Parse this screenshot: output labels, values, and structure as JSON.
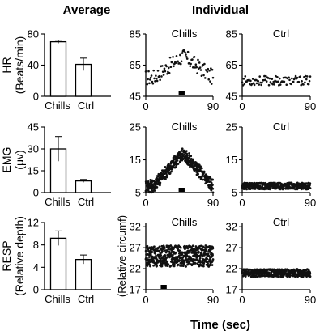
{
  "headers": {
    "average": "Average",
    "individual": "Individual",
    "time": "Time (sec)"
  },
  "chart_data": [
    {
      "id": "hr_avg",
      "type": "bar",
      "ylabel_lines": [
        "HR",
        "(Beats/min)"
      ],
      "categories": [
        "Chills",
        "Ctrl"
      ],
      "values": [
        70,
        41
      ],
      "errors": [
        2,
        8
      ],
      "ylim": [
        0,
        80
      ],
      "yticks": [
        0,
        40,
        80
      ]
    },
    {
      "id": "emg_avg",
      "type": "bar",
      "ylabel_lines": [
        "EMG",
        "(μv)"
      ],
      "categories": [
        "Chills",
        "Ctrl"
      ],
      "values": [
        30,
        8
      ],
      "errors": [
        8.5,
        1
      ],
      "ylim": [
        0,
        45
      ],
      "yticks": [
        0,
        15,
        30,
        45
      ]
    },
    {
      "id": "resp_avg",
      "type": "bar",
      "ylabel_lines": [
        "RESP",
        "(Relative depth)"
      ],
      "categories": [
        "Chills",
        "Ctrl"
      ],
      "values": [
        9.2,
        5.4
      ],
      "errors": [
        1.3,
        0.8
      ],
      "ylim": [
        0,
        12
      ],
      "yticks": [
        0,
        4,
        8,
        12
      ]
    },
    {
      "id": "hr_chills",
      "type": "scatter",
      "title": "Chills",
      "xlim": [
        0,
        90
      ],
      "xticks": [
        0,
        90
      ],
      "ylim": [
        45,
        85
      ],
      "yticks": [
        45,
        65,
        85
      ],
      "stimulus": [
        44,
        52
      ],
      "shape": "hump",
      "base": 57,
      "peak": 71,
      "noise": 5,
      "n": 95
    },
    {
      "id": "hr_ctrl",
      "type": "scatter",
      "title": "Ctrl",
      "xlim": [
        0,
        90
      ],
      "xticks": [
        0,
        90
      ],
      "ylim": [
        45,
        85
      ],
      "yticks": [
        45,
        65,
        85
      ],
      "shape": "flat",
      "base": 55,
      "noise": 3,
      "n": 90
    },
    {
      "id": "emg_chills",
      "type": "scatter",
      "title": "Chills",
      "xlim": [
        0,
        90
      ],
      "xticks": [
        0,
        90
      ],
      "ylim": [
        5,
        25
      ],
      "yticks": [
        5,
        15,
        25
      ],
      "stimulus": [
        44,
        52
      ],
      "shape": "hump",
      "base": 7,
      "peak": 17,
      "noise": 2,
      "n": 420
    },
    {
      "id": "emg_ctrl",
      "type": "scatter",
      "title": "Ctrl",
      "xlim": [
        0,
        90
      ],
      "xticks": [
        0,
        90
      ],
      "ylim": [
        5,
        25
      ],
      "yticks": [
        5,
        15,
        25
      ],
      "shape": "flat",
      "base": 7,
      "noise": 1,
      "n": 380
    },
    {
      "id": "resp_chills",
      "type": "scatter",
      "title": "Chills",
      "ylabel": "(Relative circumf)",
      "xlim": [
        0,
        90
      ],
      "xticks": [
        0,
        90
      ],
      "ylim": [
        17,
        33
      ],
      "yticks": [
        17,
        22,
        27,
        32
      ],
      "stimulus": [
        20,
        28
      ],
      "shape": "band",
      "base": 25,
      "noise": 2.5,
      "n": 520
    },
    {
      "id": "resp_ctrl",
      "type": "scatter",
      "title": "Ctrl",
      "xlim": [
        0,
        90
      ],
      "xticks": [
        0,
        90
      ],
      "ylim": [
        17,
        33
      ],
      "yticks": [
        17,
        22,
        27,
        32
      ],
      "shape": "band",
      "base": 21,
      "noise": 0.9,
      "n": 420
    }
  ]
}
